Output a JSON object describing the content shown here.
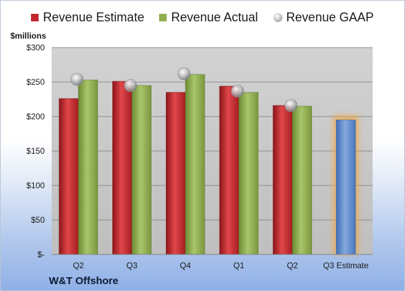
{
  "legend": {
    "estimate": "Revenue Estimate",
    "actual": "Revenue Actual",
    "gaap": "Revenue GAAP"
  },
  "unit_label": "$millions",
  "company": "W&T Offshore",
  "colors": {
    "estimate": "#c0262b",
    "actual": "#8faf4f",
    "gaap": "#b7b9bd",
    "projection": "#5b87c9",
    "projection_glow": "#f2a640",
    "plot_bg": "#c6c6c6"
  },
  "chart_data": {
    "type": "bar",
    "categories": [
      "Q2",
      "Q3",
      "Q4",
      "Q1",
      "Q2",
      "Q3 Estimate"
    ],
    "ylim": [
      0,
      300
    ],
    "y_ticks": [
      0,
      50,
      100,
      150,
      200,
      250,
      300
    ],
    "y_tick_labels": [
      "$-",
      "$50",
      "$100",
      "$150",
      "$200",
      "$250",
      "$300"
    ],
    "ylabel": "$millions",
    "grid": true,
    "legend_position": "top",
    "series": [
      {
        "name": "Revenue Estimate",
        "type": "bar",
        "values": [
          226,
          251,
          235,
          244,
          216,
          195
        ]
      },
      {
        "name": "Revenue Actual",
        "type": "bar",
        "values": [
          253,
          245,
          261,
          235,
          215,
          null
        ]
      },
      {
        "name": "Revenue GAAP",
        "type": "scatter",
        "values": [
          254,
          245,
          262,
          237,
          216,
          null
        ]
      }
    ]
  }
}
